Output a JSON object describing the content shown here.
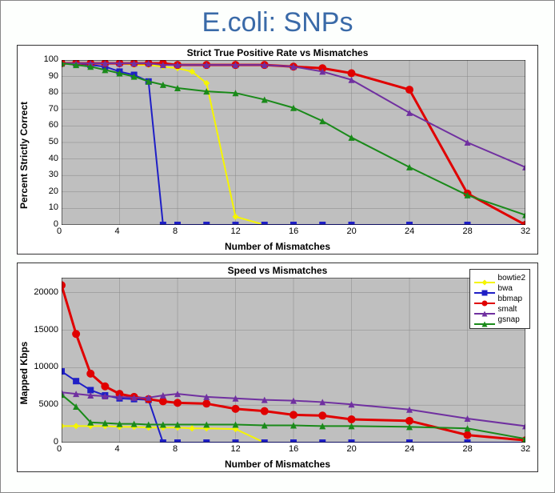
{
  "page_title": "E.coli: SNPs",
  "chart1": {
    "title": "Strict True Positive Rate vs Mismatches",
    "xlabel": "Number of Mismatches",
    "ylabel": "Percent Strictly Correct",
    "xlim": [
      0,
      32
    ],
    "ylim": [
      0,
      100
    ],
    "xticks": [
      0,
      4,
      8,
      12,
      16,
      20,
      24,
      28,
      32
    ],
    "yticks": [
      0,
      10,
      20,
      30,
      40,
      50,
      60,
      70,
      80,
      90,
      100
    ],
    "background_color": "#bfbfbf",
    "series": [
      {
        "name": "bowtie2",
        "color": "#f5f500",
        "marker": "diamond",
        "label": "bowtie2",
        "x": [
          0,
          1,
          2,
          3,
          4,
          5,
          6,
          7,
          8,
          9,
          10,
          12,
          14
        ],
        "y": [
          98,
          98,
          98,
          98,
          98,
          97,
          97,
          96,
          95,
          93,
          86,
          5,
          0
        ]
      },
      {
        "name": "bwa",
        "color": "#1f1fc6",
        "marker": "square",
        "label": "bwa",
        "x": [
          0,
          1,
          2,
          3,
          4,
          5,
          6,
          7,
          8,
          10,
          12,
          14,
          16,
          18,
          20,
          24,
          28,
          32
        ],
        "y": [
          98,
          98,
          97,
          96,
          93,
          91,
          87,
          0,
          0,
          0,
          0,
          0,
          0,
          0,
          0,
          0,
          0,
          0
        ]
      },
      {
        "name": "bbmap",
        "color": "#e00000",
        "marker": "circle",
        "label": "bbmap",
        "x": [
          0,
          1,
          2,
          3,
          4,
          5,
          6,
          7,
          8,
          10,
          12,
          14,
          16,
          18,
          20,
          24,
          28,
          32
        ],
        "y": [
          98,
          98,
          98,
          98,
          98,
          98,
          98,
          98,
          97,
          97,
          97,
          97,
          96,
          95,
          92,
          82,
          19,
          0
        ]
      },
      {
        "name": "smalt",
        "color": "#7030a0",
        "marker": "triangle",
        "label": "smalt",
        "x": [
          0,
          1,
          2,
          3,
          4,
          5,
          6,
          7,
          8,
          10,
          12,
          14,
          16,
          18,
          20,
          24,
          28,
          32
        ],
        "y": [
          98,
          98,
          98,
          98,
          98,
          98,
          98,
          97,
          97,
          97,
          97,
          97,
          96,
          93,
          88,
          68,
          50,
          35
        ]
      },
      {
        "name": "gsnap",
        "color": "#1a8a1a",
        "marker": "triangle",
        "label": "gsnap",
        "x": [
          0,
          1,
          2,
          3,
          4,
          5,
          6,
          7,
          8,
          10,
          12,
          14,
          16,
          18,
          20,
          24,
          28,
          32
        ],
        "y": [
          98,
          97,
          96,
          94,
          92,
          90,
          87,
          85,
          83,
          81,
          80,
          76,
          71,
          63,
          53,
          35,
          18,
          6
        ]
      }
    ]
  },
  "chart2": {
    "title": "Speed vs Mismatches",
    "xlabel": "Number of Mismatches",
    "ylabel": "Mapped Kbps",
    "xlim": [
      0,
      32
    ],
    "ylim": [
      0,
      22000
    ],
    "xticks": [
      0,
      4,
      8,
      12,
      16,
      20,
      24,
      28,
      32
    ],
    "yticks": [
      0,
      5000,
      10000,
      15000,
      20000
    ],
    "background_color": "#bfbfbf",
    "series": [
      {
        "name": "bowtie2",
        "color": "#f5f500",
        "marker": "diamond",
        "label": "bowtie2",
        "x": [
          0,
          1,
          2,
          3,
          4,
          5,
          6,
          7,
          8,
          9,
          10,
          12,
          14
        ],
        "y": [
          2200,
          2200,
          2200,
          2200,
          2100,
          2100,
          2000,
          2000,
          2000,
          1900,
          1900,
          1800,
          0
        ]
      },
      {
        "name": "bwa",
        "color": "#1f1fc6",
        "marker": "square",
        "label": "bwa",
        "x": [
          0,
          1,
          2,
          3,
          4,
          5,
          6,
          7,
          8,
          10,
          12,
          14,
          16,
          18,
          20,
          24,
          28,
          32
        ],
        "y": [
          9500,
          8200,
          7000,
          6300,
          5900,
          5800,
          5700,
          0,
          0,
          0,
          0,
          0,
          0,
          0,
          0,
          0,
          0,
          0
        ]
      },
      {
        "name": "bbmap",
        "color": "#e00000",
        "marker": "circle",
        "label": "bbmap",
        "x": [
          0,
          1,
          2,
          3,
          4,
          5,
          6,
          7,
          8,
          10,
          12,
          14,
          16,
          18,
          20,
          24,
          28,
          32
        ],
        "y": [
          21000,
          14500,
          9200,
          7500,
          6500,
          6100,
          5800,
          5500,
          5300,
          5200,
          4500,
          4200,
          3700,
          3600,
          3100,
          2900,
          1000,
          300
        ]
      },
      {
        "name": "smalt",
        "color": "#7030a0",
        "marker": "triangle",
        "label": "smalt",
        "x": [
          0,
          1,
          2,
          3,
          4,
          5,
          6,
          7,
          8,
          10,
          12,
          14,
          16,
          18,
          20,
          24,
          28,
          32
        ],
        "y": [
          6700,
          6500,
          6300,
          6200,
          6100,
          6000,
          6000,
          6300,
          6500,
          6100,
          5900,
          5700,
          5600,
          5400,
          5100,
          4400,
          3200,
          2200
        ]
      },
      {
        "name": "gsnap",
        "color": "#1a8a1a",
        "marker": "triangle",
        "label": "gsnap",
        "x": [
          0,
          1,
          2,
          3,
          4,
          5,
          6,
          7,
          8,
          10,
          12,
          14,
          16,
          18,
          20,
          24,
          28,
          32
        ],
        "y": [
          6400,
          4800,
          2700,
          2600,
          2500,
          2500,
          2400,
          2400,
          2400,
          2400,
          2400,
          2300,
          2300,
          2200,
          2200,
          2100,
          1900,
          500
        ]
      }
    ]
  },
  "legend_items": [
    {
      "label": "bowtie2",
      "color": "#f5f500",
      "marker": "diamond"
    },
    {
      "label": "bwa",
      "color": "#1f1fc6",
      "marker": "square"
    },
    {
      "label": "bbmap",
      "color": "#e00000",
      "marker": "circle"
    },
    {
      "label": "smalt",
      "color": "#7030a0",
      "marker": "triangle"
    },
    {
      "label": "gsnap",
      "color": "#1a8a1a",
      "marker": "triangle"
    }
  ]
}
